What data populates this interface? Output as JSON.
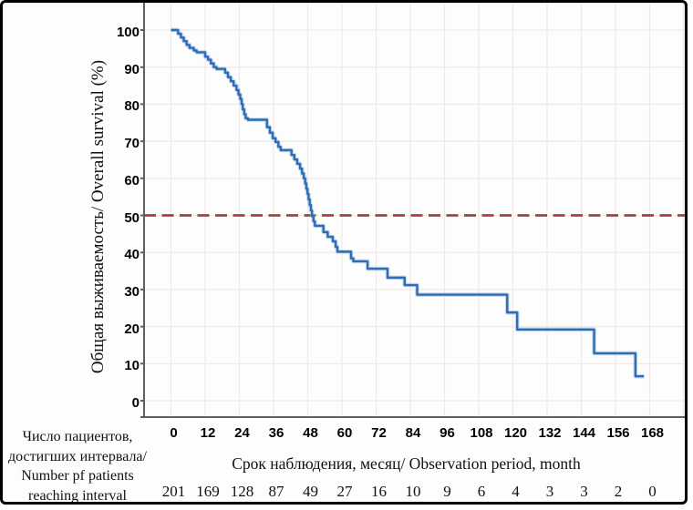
{
  "chart_data": {
    "type": "line",
    "subtype": "kaplan-meier-step-curve",
    "title": "",
    "ylabel": "Общая выживаемость/ Overall survival (%)",
    "xlabel": "Срок наблюдения, месяц/ Observation period, month",
    "x_ticks": [
      0,
      12,
      24,
      36,
      48,
      60,
      72,
      84,
      96,
      108,
      120,
      132,
      144,
      156,
      168
    ],
    "y_ticks": [
      0,
      10,
      20,
      30,
      40,
      50,
      60,
      70,
      80,
      90,
      100
    ],
    "xlim": [
      0,
      180
    ],
    "ylim": [
      0,
      100
    ],
    "grid": true,
    "legend": "none",
    "reference_line": {
      "y": 50,
      "style": "dashed",
      "color": "#a8403f"
    },
    "series": [
      {
        "name": "Overall survival",
        "color": "#2e6cb4",
        "start": [
          0,
          100
        ],
        "end_month": 166,
        "steps": [
          [
            2.5,
            99
          ],
          [
            3.5,
            98
          ],
          [
            4.5,
            97
          ],
          [
            5.5,
            96
          ],
          [
            6.5,
            95.2
          ],
          [
            8,
            94.5
          ],
          [
            9,
            94
          ],
          [
            12,
            92.8
          ],
          [
            13,
            92
          ],
          [
            14,
            91
          ],
          [
            15,
            90
          ],
          [
            16,
            89.5
          ],
          [
            19,
            88.5
          ],
          [
            20,
            87.3
          ],
          [
            21,
            86.2
          ],
          [
            22,
            85
          ],
          [
            23,
            83.8
          ],
          [
            23.7,
            82.6
          ],
          [
            24.3,
            81.4
          ],
          [
            24.8,
            80
          ],
          [
            25.2,
            78.6
          ],
          [
            25.7,
            77.3
          ],
          [
            26.2,
            76.2
          ],
          [
            27,
            75.8
          ],
          [
            33.7,
            73.8
          ],
          [
            34.7,
            72.3
          ],
          [
            35.7,
            70.8
          ],
          [
            36.7,
            69.8
          ],
          [
            37.7,
            68.5
          ],
          [
            38.5,
            67.6
          ],
          [
            42.3,
            66.3
          ],
          [
            43.3,
            65.1
          ],
          [
            44.3,
            63.9
          ],
          [
            45.3,
            62.6
          ],
          [
            46,
            61.3
          ],
          [
            46.6,
            60
          ],
          [
            47.1,
            58.6
          ],
          [
            47.5,
            57.2
          ],
          [
            47.9,
            55.8
          ],
          [
            48.3,
            54.3
          ],
          [
            48.7,
            52.8
          ],
          [
            49.1,
            51.3
          ],
          [
            49.5,
            49.8
          ],
          [
            50,
            48.4
          ],
          [
            50.5,
            47.2
          ],
          [
            53.5,
            45.5
          ],
          [
            55,
            44.2
          ],
          [
            56.8,
            43
          ],
          [
            57.8,
            41.5
          ],
          [
            58.4,
            40.2
          ],
          [
            63.2,
            38.4
          ],
          [
            64,
            37.6
          ],
          [
            69,
            35.6
          ],
          [
            76,
            33.2
          ],
          [
            82,
            31.2
          ],
          [
            86.4,
            28.6
          ],
          [
            118,
            23.8
          ],
          [
            121.5,
            19.2
          ],
          [
            148.5,
            12.8
          ],
          [
            163,
            6.6
          ]
        ]
      }
    ],
    "at_risk": {
      "label_lines": [
        "Число пациентов,",
        "достигших интервала/",
        "Number pf patients",
        "reaching interval"
      ],
      "counts": [
        201,
        169,
        128,
        87,
        49,
        27,
        16,
        10,
        9,
        6,
        4,
        3,
        3,
        2,
        0
      ]
    }
  },
  "colors": {
    "curve": "#2e6cb4",
    "curve_halo": "#8fb3d9",
    "reference": "#a8403f",
    "grid": "#f1e8e8",
    "axis": "#5f5f5f",
    "text": "#111111"
  }
}
